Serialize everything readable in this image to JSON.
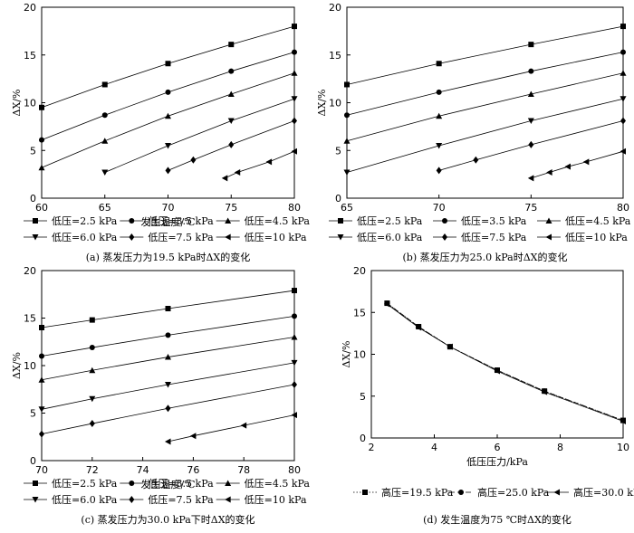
{
  "chart_data": [
    {
      "type": "line",
      "caption": "(a) 蒸发压力为19.5 kPa时ΔX的变化",
      "xlabel": "发生温度/℃",
      "ylabel": "ΔX/%",
      "xlim": [
        60,
        80
      ],
      "ylim": [
        0,
        20
      ],
      "xticks": [
        60,
        65,
        70,
        75,
        80
      ],
      "yticks": [
        0,
        5,
        10,
        15,
        20
      ],
      "legend": "bottom",
      "series": [
        {
          "name": "低压=2.5 kPa",
          "marker": "square",
          "x": [
            60,
            65,
            70,
            75,
            80
          ],
          "y": [
            9.5,
            11.9,
            14.1,
            16.1,
            18.0
          ]
        },
        {
          "name": "低压=3.5 kPa",
          "marker": "circle",
          "x": [
            60,
            65,
            70,
            75,
            80
          ],
          "y": [
            6.1,
            8.7,
            11.1,
            13.3,
            15.3
          ]
        },
        {
          "name": "低压=4.5 kPa",
          "marker": "triangle-up",
          "x": [
            60,
            65,
            70,
            75,
            80
          ],
          "y": [
            3.2,
            6.0,
            8.6,
            10.9,
            13.1
          ]
        },
        {
          "name": "低压=6.0 kPa",
          "marker": "triangle-down",
          "x": [
            65,
            70,
            75,
            80
          ],
          "y": [
            2.7,
            5.5,
            8.1,
            10.4
          ]
        },
        {
          "name": "低压=7.5 kPa",
          "marker": "diamond",
          "x": [
            70,
            72,
            75,
            80
          ],
          "y": [
            2.9,
            4.0,
            5.6,
            8.1
          ]
        },
        {
          "name": "低压=10 kPa",
          "marker": "triangle-left",
          "x": [
            74.5,
            75.5,
            78,
            80
          ],
          "y": [
            2.1,
            2.7,
            3.8,
            4.9
          ]
        }
      ]
    },
    {
      "type": "line",
      "caption": "(b) 蒸发压力为25.0 kPa时ΔX的变化",
      "xlabel": "",
      "ylabel": "ΔX/%",
      "xlim": [
        65,
        80
      ],
      "ylim": [
        0,
        20
      ],
      "xticks": [
        65,
        70,
        75,
        80
      ],
      "yticks": [
        0,
        5,
        10,
        15,
        20
      ],
      "legend": "bottom",
      "series": [
        {
          "name": "低压=2.5 kPa",
          "marker": "square",
          "x": [
            65,
            70,
            75,
            80
          ],
          "y": [
            11.9,
            14.1,
            16.1,
            18.0
          ]
        },
        {
          "name": "低压=3.5 kPa",
          "marker": "circle",
          "x": [
            65,
            70,
            75,
            80
          ],
          "y": [
            8.7,
            11.1,
            13.3,
            15.3
          ]
        },
        {
          "name": "低压=4.5 kPa",
          "marker": "triangle-up",
          "x": [
            65,
            70,
            75,
            80
          ],
          "y": [
            6.0,
            8.6,
            10.9,
            13.1
          ]
        },
        {
          "name": "低压=6.0 kPa",
          "marker": "triangle-down",
          "x": [
            65,
            70,
            75,
            80
          ],
          "y": [
            2.7,
            5.5,
            8.1,
            10.4
          ]
        },
        {
          "name": "低压=7.5 kPa",
          "marker": "diamond",
          "x": [
            70,
            72,
            75,
            80
          ],
          "y": [
            2.9,
            4.0,
            5.6,
            8.1
          ]
        },
        {
          "name": "低压=10 kPa",
          "marker": "triangle-left",
          "x": [
            75,
            76,
            77,
            78,
            80
          ],
          "y": [
            2.1,
            2.7,
            3.3,
            3.8,
            4.9
          ]
        }
      ]
    },
    {
      "type": "line",
      "caption": "(c) 蒸发压力为30.0 kPa下时ΔX的变化",
      "xlabel": "发生温度/℃",
      "ylabel": "ΔX/%",
      "xlim": [
        70,
        80
      ],
      "ylim": [
        0,
        20
      ],
      "xticks": [
        70,
        72,
        74,
        76,
        78,
        80
      ],
      "yticks": [
        0,
        5,
        10,
        15,
        20
      ],
      "legend": "bottom",
      "series": [
        {
          "name": "低压=2.5 kPa",
          "marker": "square",
          "x": [
            70,
            72,
            75,
            80
          ],
          "y": [
            14.0,
            14.8,
            16.0,
            17.9
          ]
        },
        {
          "name": "低压=3.5 kPa",
          "marker": "circle",
          "x": [
            70,
            72,
            75,
            80
          ],
          "y": [
            11.0,
            11.9,
            13.2,
            15.2
          ]
        },
        {
          "name": "低压=4.5 kPa",
          "marker": "triangle-up",
          "x": [
            70,
            72,
            75,
            80
          ],
          "y": [
            8.5,
            9.5,
            10.9,
            13.0
          ]
        },
        {
          "name": "低压=6.0 kPa",
          "marker": "triangle-down",
          "x": [
            70,
            72,
            75,
            80
          ],
          "y": [
            5.4,
            6.5,
            8.0,
            10.3
          ]
        },
        {
          "name": "低压=7.5 kPa",
          "marker": "diamond",
          "x": [
            70,
            72,
            75,
            80
          ],
          "y": [
            2.8,
            3.9,
            5.5,
            8.0
          ]
        },
        {
          "name": "低压=10 kPa",
          "marker": "triangle-left",
          "x": [
            75,
            76,
            78,
            80
          ],
          "y": [
            2.0,
            2.6,
            3.7,
            4.8
          ]
        }
      ]
    },
    {
      "type": "line",
      "caption": "(d) 发生温度为75 ℃时ΔX的变化",
      "xlabel": "低压压力/kPa",
      "ylabel": "ΔX/%",
      "xlim": [
        2,
        10
      ],
      "ylim": [
        0,
        20
      ],
      "xticks": [
        2,
        4,
        6,
        8,
        10
      ],
      "yticks": [
        0,
        5,
        10,
        15,
        20
      ],
      "legend": "bottom",
      "series": [
        {
          "name": "高压=19.5 kPa",
          "marker": "square",
          "dash": "1.5,2",
          "x": [
            2.5,
            3.5,
            4.5,
            6.0,
            7.5,
            10
          ],
          "y": [
            16.1,
            13.3,
            10.9,
            8.1,
            5.6,
            2.1
          ]
        },
        {
          "name": "高压=25.0 kPa",
          "marker": "circle",
          "dash": "6,3",
          "x": [
            2.5,
            3.5,
            4.5,
            6.0,
            7.5,
            10
          ],
          "y": [
            16.1,
            13.3,
            10.9,
            8.1,
            5.6,
            2.1
          ]
        },
        {
          "name": "高压=30.0 kPa",
          "marker": "triangle-left",
          "dash": "",
          "x": [
            2.5,
            3.5,
            4.5,
            6.0,
            7.5,
            10
          ],
          "y": [
            16.0,
            13.2,
            10.9,
            8.0,
            5.5,
            2.0
          ]
        }
      ]
    }
  ]
}
